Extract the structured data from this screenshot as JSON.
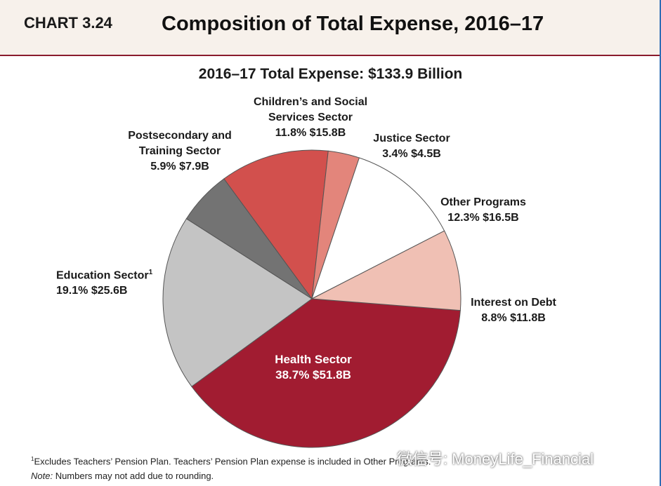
{
  "header": {
    "chart_number": "CHART 3.24",
    "title": "Composition of Total Expense, 2016–17"
  },
  "chart_data": {
    "type": "pie",
    "title": "2016–17 Total Expense: $133.9 Billion",
    "slices": [
      {
        "name": "Health Sector",
        "percent": 38.7,
        "value_label": "$51.8B",
        "value": 51.8,
        "color": "#a11c31"
      },
      {
        "name": "Education Sector",
        "footnote_mark": "1",
        "percent": 19.1,
        "value_label": "$25.6B",
        "value": 25.6,
        "color": "#c4c4c4"
      },
      {
        "name": "Postsecondary and Training Sector",
        "percent": 5.9,
        "value_label": "$7.9B",
        "value": 7.9,
        "color": "#737373"
      },
      {
        "name": "Children’s and Social Services Sector",
        "percent": 11.8,
        "value_label": "$15.8B",
        "value": 15.8,
        "color": "#d2504d"
      },
      {
        "name": "Justice Sector",
        "percent": 3.4,
        "value_label": "$4.5B",
        "value": 4.5,
        "color": "#e3857b"
      },
      {
        "name": "Other Programs",
        "percent": 12.3,
        "value_label": "$16.5B",
        "value": 16.5,
        "color": "#ffffff"
      },
      {
        "name": "Interest on Debt",
        "percent": 8.8,
        "value_label": "$11.8B",
        "value": 11.8,
        "color": "#f0c0b4"
      }
    ]
  },
  "labels": {
    "children_line1": "Children’s and Social",
    "children_line2": "Services Sector",
    "children_value": "11.8%  $15.8B",
    "postsec_line1": "Postsecondary and",
    "postsec_line2": "Training Sector",
    "postsec_value": "5.9%  $7.9B",
    "justice_line1": "Justice Sector",
    "justice_value": "3.4%  $4.5B",
    "other_line1": "Other Programs",
    "other_value": "12.3%  $16.5B",
    "education_line1": "Education Sector",
    "education_sup": "1",
    "education_value": "19.1%  $25.6B",
    "interest_line1": "Interest on Debt",
    "interest_value": "8.8%  $11.8B",
    "health_line1": "Health Sector",
    "health_value": "38.7%  $51.8B"
  },
  "footnotes": {
    "note1_mark": "1",
    "note1": "Excludes Teachers’ Pension Plan. Teachers’ Pension Plan expense is included in Other Programs.",
    "note2_label": "Note:",
    "note2": " Numbers may not add due to rounding."
  },
  "watermark": "微信号: MoneyLife_Financial"
}
